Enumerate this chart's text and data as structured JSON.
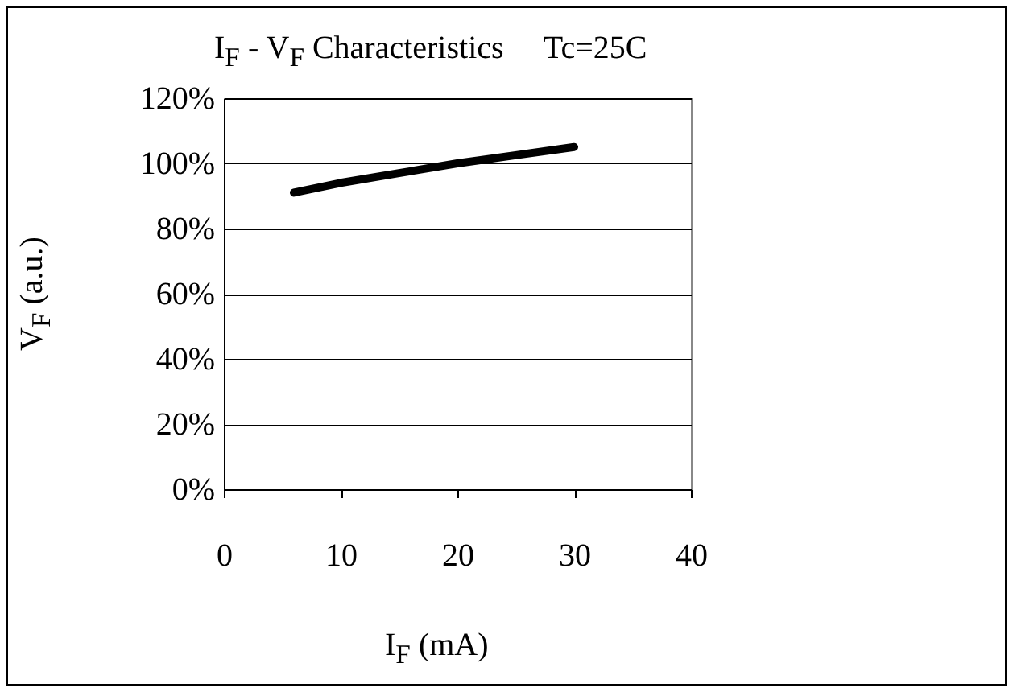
{
  "chart_data": {
    "type": "line",
    "title": "I$_{F}$ - V$_{F}$ Characteristics     Tc=25C",
    "xlabel": "I$_{F}$ (mA)",
    "ylabel": "V$_{F}$ (a.u.)",
    "x": [
      6,
      10,
      15,
      20,
      25,
      30
    ],
    "series": [
      {
        "color": "#000000",
        "values": [
          91,
          94,
          97,
          100,
          102.5,
          105
        ]
      }
    ],
    "xlim": [
      0,
      40
    ],
    "xticks": [
      0,
      10,
      20,
      30,
      40
    ],
    "ylim": [
      0,
      120
    ],
    "yticks": [
      {
        "value": 0,
        "label": "0%"
      },
      {
        "value": 20,
        "label": "20%"
      },
      {
        "value": 40,
        "label": "40%"
      },
      {
        "value": 60,
        "label": "60%"
      },
      {
        "value": 80,
        "label": "80%"
      },
      {
        "value": 100,
        "label": "100%"
      },
      {
        "value": 120,
        "label": "120%"
      }
    ],
    "grid": "y",
    "legend": false,
    "marker": "none",
    "line_style": "solid"
  }
}
